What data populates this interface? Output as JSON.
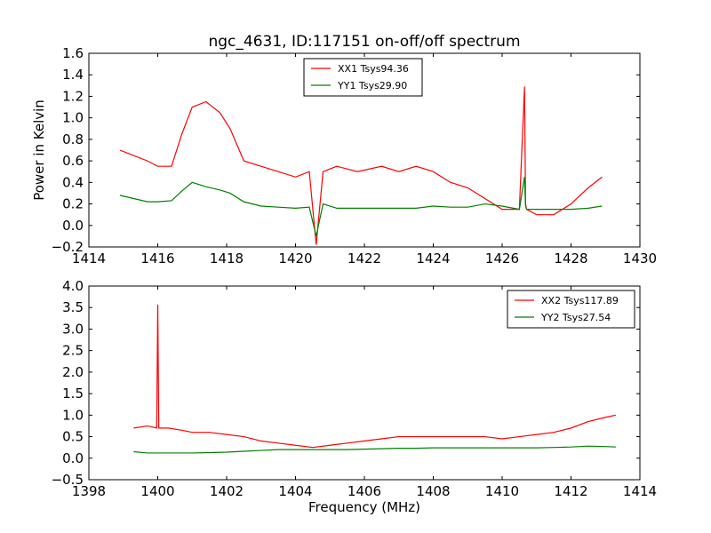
{
  "chart_data": [
    {
      "type": "line",
      "title": "ngc_4631, ID:117151 on-off/off spectrum",
      "xlabel": "",
      "ylabel": "Power in Kelvin",
      "xlim": [
        1414,
        1430
      ],
      "ylim": [
        -0.2,
        1.6
      ],
      "xticks": [
        1414,
        1416,
        1418,
        1420,
        1422,
        1424,
        1426,
        1428,
        1430
      ],
      "yticks": [
        -0.2,
        0.0,
        0.2,
        0.4,
        0.6,
        0.8,
        1.0,
        1.2,
        1.4,
        1.6
      ],
      "grid": false,
      "legend_position": "top-center",
      "series": [
        {
          "name": "XX1 Tsys94.36",
          "color": "#ff0000",
          "x": [
            1414.9,
            1415.3,
            1415.7,
            1416.0,
            1416.4,
            1416.7,
            1417.0,
            1417.4,
            1417.8,
            1418.1,
            1418.5,
            1419.0,
            1419.5,
            1420.0,
            1420.4,
            1420.6,
            1420.8,
            1421.2,
            1421.8,
            1422.5,
            1423.0,
            1423.5,
            1424.0,
            1424.5,
            1425.0,
            1425.5,
            1426.0,
            1426.5,
            1426.65,
            1426.68,
            1426.71,
            1427.0,
            1427.5,
            1428.0,
            1428.5,
            1428.9
          ],
          "y": [
            0.7,
            0.65,
            0.6,
            0.55,
            0.55,
            0.85,
            1.1,
            1.15,
            1.05,
            0.9,
            0.6,
            0.55,
            0.5,
            0.45,
            0.5,
            -0.18,
            0.5,
            0.55,
            0.5,
            0.55,
            0.5,
            0.55,
            0.5,
            0.4,
            0.35,
            0.25,
            0.15,
            0.15,
            1.29,
            0.2,
            0.15,
            0.1,
            0.1,
            0.2,
            0.35,
            0.45
          ]
        },
        {
          "name": "YY1 Tsys29.90",
          "color": "#008000",
          "x": [
            1414.9,
            1415.3,
            1415.7,
            1416.0,
            1416.4,
            1416.7,
            1417.0,
            1417.4,
            1417.8,
            1418.1,
            1418.5,
            1419.0,
            1419.5,
            1420.0,
            1420.4,
            1420.6,
            1420.8,
            1421.2,
            1421.8,
            1422.5,
            1423.0,
            1423.5,
            1424.0,
            1424.5,
            1425.0,
            1425.5,
            1426.0,
            1426.5,
            1426.65,
            1426.68,
            1426.71,
            1427.0,
            1427.5,
            1428.0,
            1428.5,
            1428.9
          ],
          "y": [
            0.28,
            0.25,
            0.22,
            0.22,
            0.23,
            0.32,
            0.4,
            0.36,
            0.33,
            0.3,
            0.22,
            0.18,
            0.17,
            0.16,
            0.17,
            -0.1,
            0.2,
            0.16,
            0.16,
            0.16,
            0.16,
            0.16,
            0.18,
            0.17,
            0.17,
            0.2,
            0.18,
            0.15,
            0.45,
            0.18,
            0.15,
            0.15,
            0.15,
            0.15,
            0.16,
            0.18
          ]
        }
      ]
    },
    {
      "type": "line",
      "title": "",
      "xlabel": "Frequency (MHz)",
      "ylabel": "",
      "xlim": [
        1398,
        1414
      ],
      "ylim": [
        -0.5,
        4.0
      ],
      "xticks": [
        1398,
        1400,
        1402,
        1404,
        1406,
        1408,
        1410,
        1412,
        1414
      ],
      "yticks": [
        -0.5,
        0.0,
        0.5,
        1.0,
        1.5,
        2.0,
        2.5,
        3.0,
        3.5,
        4.0
      ],
      "grid": false,
      "legend_position": "top-right",
      "series": [
        {
          "name": "XX2 Tsys117.89",
          "color": "#ff0000",
          "x": [
            1399.3,
            1399.7,
            1399.97,
            1400.0,
            1400.03,
            1400.3,
            1400.7,
            1401.0,
            1401.5,
            1402.0,
            1402.5,
            1403.0,
            1403.5,
            1404.0,
            1404.5,
            1405.0,
            1405.5,
            1406.0,
            1406.5,
            1407.0,
            1407.5,
            1408.0,
            1408.5,
            1409.0,
            1409.5,
            1410.0,
            1410.5,
            1411.0,
            1411.5,
            1412.0,
            1412.5,
            1413.0,
            1413.3
          ],
          "y": [
            0.7,
            0.75,
            0.7,
            3.57,
            0.7,
            0.7,
            0.65,
            0.6,
            0.6,
            0.55,
            0.5,
            0.4,
            0.35,
            0.3,
            0.25,
            0.3,
            0.35,
            0.4,
            0.45,
            0.5,
            0.5,
            0.5,
            0.5,
            0.5,
            0.5,
            0.45,
            0.5,
            0.55,
            0.6,
            0.7,
            0.85,
            0.95,
            1.0
          ]
        },
        {
          "name": "YY2 Tsys27.54",
          "color": "#008000",
          "x": [
            1399.3,
            1399.7,
            1399.97,
            1400.0,
            1400.03,
            1400.3,
            1400.7,
            1401.0,
            1401.5,
            1402.0,
            1402.5,
            1403.0,
            1403.5,
            1404.0,
            1404.5,
            1405.0,
            1405.5,
            1406.0,
            1406.5,
            1407.0,
            1407.5,
            1408.0,
            1408.5,
            1409.0,
            1409.5,
            1410.0,
            1410.5,
            1411.0,
            1411.5,
            1412.0,
            1412.5,
            1413.0,
            1413.3
          ],
          "y": [
            0.15,
            0.12,
            0.12,
            0.12,
            0.12,
            0.12,
            0.12,
            0.12,
            0.13,
            0.14,
            0.16,
            0.18,
            0.2,
            0.2,
            0.2,
            0.2,
            0.2,
            0.21,
            0.22,
            0.23,
            0.23,
            0.24,
            0.24,
            0.24,
            0.24,
            0.24,
            0.24,
            0.24,
            0.25,
            0.26,
            0.28,
            0.27,
            0.26
          ]
        }
      ]
    }
  ]
}
